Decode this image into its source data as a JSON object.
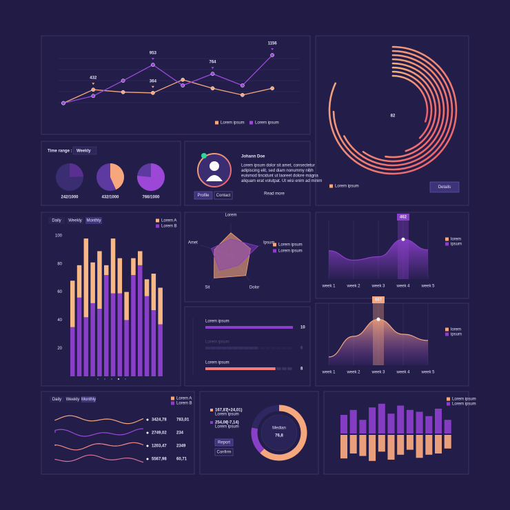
{
  "line_panel": {
    "type": "line",
    "categories": [
      null,
      null,
      null,
      null,
      null,
      null,
      null,
      null
    ],
    "ylim": [
      0,
      1300
    ],
    "series": [
      {
        "name": "Lorem ipsum",
        "color": "#f5a77e",
        "values": [
          150,
          432,
          380,
          364,
          640,
          460,
          320,
          460
        ],
        "value_labels": [
          null,
          "432",
          null,
          "364",
          null,
          null,
          null,
          null
        ]
      },
      {
        "name": "Lorem ipsum",
        "color": "#9a4bd6",
        "values": [
          150,
          300,
          620,
          953,
          520,
          764,
          520,
          1156
        ],
        "value_labels": [
          null,
          null,
          null,
          "953",
          null,
          "764",
          null,
          "1156"
        ]
      }
    ]
  },
  "gauge_panel": {
    "type": "gauge",
    "value": 82,
    "legend": "Lorem ipsum",
    "button": "Details"
  },
  "time_panel": {
    "type": "pie",
    "label": "Time range :",
    "selector": "Weekly",
    "total": 1000,
    "values": [
      242,
      432,
      766
    ],
    "value_labels": [
      "242/1000",
      "432/1000",
      "766/1000"
    ],
    "colors": [
      "#5b2f91",
      "#f6a77e",
      "#9c47d6"
    ]
  },
  "profile": {
    "name": "Johann Doe",
    "text": [
      "Lorem ipsum dolor sit amet, consectetur",
      "adipiscing elit, sed diam nonummy nibh",
      "euismod tincidunt ut laoreet dolore magna",
      "aliquam erat volutpat. Ut wisi enim ad minim"
    ],
    "buttons": [
      "Profile",
      "Contact"
    ],
    "link": "Read more"
  },
  "bar_panel": {
    "type": "bar",
    "tabs": [
      "Daily",
      "Weekly",
      "Monthly"
    ],
    "categories": [
      null,
      null,
      null,
      null,
      null,
      null,
      null,
      null,
      null,
      null,
      null,
      null,
      null,
      null
    ],
    "ylim": [
      0,
      100
    ],
    "yticks": [
      20,
      40,
      60,
      80,
      100
    ],
    "series": [
      {
        "name": "Lorem A",
        "color": "#f7b886",
        "values": [
          33,
          23,
          56,
          29,
          41,
          7,
          39,
          25,
          20,
          12,
          10,
          12,
          26,
          26
        ]
      },
      {
        "name": "Lorem B",
        "color": "#8a3fc8",
        "values": [
          35,
          56,
          42,
          52,
          48,
          72,
          59,
          59,
          40,
          72,
          79,
          57,
          47,
          37
        ]
      }
    ]
  },
  "radar_panel": {
    "type": "radar",
    "categories": [
      "Lorem",
      "Ipsum",
      "Dolor",
      "Sit",
      "Amet"
    ],
    "ylim": [
      0,
      100
    ],
    "series": [
      {
        "name": "Lorem ipsum",
        "color": "#f6a77e",
        "values": [
          70,
          65,
          80,
          90,
          55
        ]
      },
      {
        "name": "Lorem ipsum",
        "color": "#8a3fc8",
        "values": [
          50,
          90,
          40,
          60,
          65
        ]
      }
    ]
  },
  "progress_panel": {
    "type": "progress",
    "items": [
      {
        "label": "Lorem ipsum",
        "value": 10
      },
      {
        "label": "Lorem ipsum",
        "value": 6
      },
      {
        "label": "Lorem ipsum",
        "value": 8
      }
    ]
  },
  "area_panels": [
    {
      "type": "area",
      "categories": [
        "week 1",
        "week 2",
        "week 3",
        "week 4",
        "week 5"
      ],
      "ylim": [
        0,
        600
      ],
      "color": "#8a3fc8",
      "values": [
        330,
        220,
        260,
        462,
        340
      ],
      "value_labels": [
        null,
        null,
        null,
        "462",
        null
      ],
      "legend": [
        "lorem",
        "ipsum"
      ]
    },
    {
      "type": "area",
      "categories": [
        "week 1",
        "week 2",
        "week 3",
        "week 4",
        "week 5"
      ],
      "ylim": [
        0,
        800
      ],
      "color": "#f6a77e",
      "values": [
        120,
        420,
        667,
        450,
        360
      ],
      "value_labels": [
        null,
        null,
        "667",
        null,
        null
      ],
      "legend": [
        "lorem",
        "ipsum"
      ]
    }
  ],
  "wave_panel": {
    "tabs": [
      "Daily",
      "Weekly",
      "Monthly"
    ],
    "legend": [
      "Lorem A",
      "Lorem B"
    ],
    "rows": [
      {
        "value": "3424,78",
        "change": "783,01"
      },
      {
        "value": "2749,02",
        "change": "234"
      },
      {
        "value": "1203,47",
        "change": "2349"
      },
      {
        "value": "5567,98",
        "change": "60,71"
      }
    ]
  },
  "donut_panel": {
    "type": "donut",
    "rows": [
      {
        "value": "167,87",
        "change": "(+24,01)",
        "note": "Lorem ipsum"
      },
      {
        "value": "254,06",
        "change": "(-7,14)",
        "note": "Lorem ipsum"
      }
    ],
    "buttons": [
      "Report",
      "Confirm"
    ],
    "center_label": "Median",
    "center_value": "76,8",
    "values": [
      62,
      16,
      22
    ]
  },
  "mirror_panel": {
    "type": "bar",
    "ylim": [
      0,
      50
    ],
    "series": [
      {
        "name": "Lorem ipsum",
        "color": "#f6a77e",
        "values": [
          38,
          30,
          34,
          42,
          27,
          40,
          32,
          24,
          37,
          32,
          30,
          22
        ]
      },
      {
        "name": "Lorem ipsum",
        "color": "#8a3fc8",
        "values": [
          30,
          38,
          22,
          42,
          48,
          32,
          45,
          38,
          35,
          28,
          40,
          22
        ]
      }
    ]
  }
}
